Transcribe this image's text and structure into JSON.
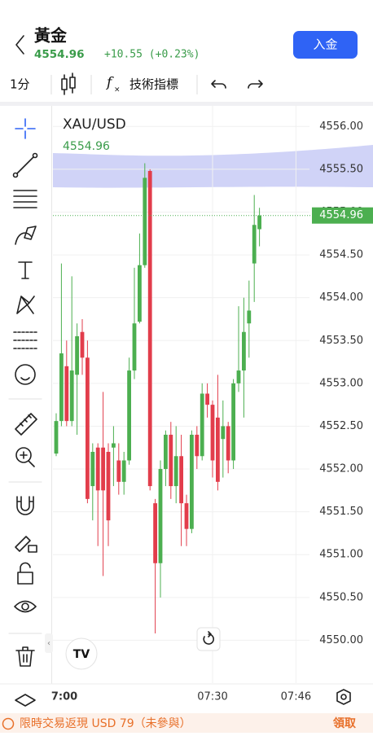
{
  "header": {
    "title": "黃金",
    "price": "4554.96",
    "change": "+10.55 (+0.23%)",
    "button": "入金"
  },
  "toolbar": {
    "interval": "1分",
    "indicators": "技術指標"
  },
  "banner": {
    "text": "限時交易返現 USD 79（未參與）",
    "action": "領取"
  },
  "chart_data": {
    "type": "candlestick",
    "title": "XAU/USD",
    "last_price": 4554.96,
    "up_color": "#4caf50",
    "down_color": "#e23d4b",
    "x": [
      "07:00",
      "07:01",
      "07:02",
      "07:03",
      "07:04",
      "07:05",
      "07:06",
      "07:07",
      "07:08",
      "07:09",
      "07:10",
      "07:11",
      "07:12",
      "07:13",
      "07:14",
      "07:15",
      "07:16",
      "07:17",
      "07:18",
      "07:19",
      "07:20",
      "07:21",
      "07:22",
      "07:23",
      "07:24",
      "07:25",
      "07:26",
      "07:27",
      "07:28",
      "07:29",
      "07:30",
      "07:31",
      "07:32",
      "07:33",
      "07:34",
      "07:35",
      "07:36",
      "07:37",
      "07:38",
      "07:39"
    ],
    "open": [
      4552.18,
      4552.56,
      4553.2,
      4552.56,
      4553.1,
      4553.6,
      4553.3,
      4551.8,
      4552.25,
      4552.25,
      4552.2,
      4552.25,
      4552.1,
      4551.85,
      4552.1,
      4553.15,
      4553.72,
      4554.38,
      4555.48,
      4551.6,
      4550.9,
      4552.0,
      4552.4,
      4551.8,
      4552.15,
      4551.6,
      4551.3,
      4552.4,
      4552.15,
      4552.88,
      4552.75,
      4552.6,
      4552.35,
      4552.5,
      4552.1,
      4553.0,
      4553.15,
      4553.7,
      4554.4,
      4554.8
    ],
    "high": [
      4552.65,
      4554.4,
      4553.5,
      4554.25,
      4553.7,
      4553.75,
      4553.5,
      4552.3,
      4552.3,
      4552.9,
      4552.3,
      4552.5,
      4552.3,
      4552.2,
      4553.3,
      4554.35,
      4554.75,
      4555.57,
      4555.5,
      4551.65,
      4552.1,
      4552.45,
      4552.55,
      4552.5,
      4552.4,
      4551.7,
      4552.45,
      4552.5,
      4553.0,
      4553.0,
      4552.8,
      4553.1,
      4552.8,
      4552.55,
      4553.05,
      4553.9,
      4554.0,
      4554.2,
      4555.2,
      4555.05
    ],
    "low": [
      4552.15,
      4552.5,
      4552.5,
      4552.5,
      4552.4,
      4553.1,
      4551.6,
      4551.4,
      4551.1,
      4550.75,
      4551.1,
      4551.8,
      4551.7,
      4551.7,
      4552.05,
      4553.05,
      4553.7,
      4554.35,
      4551.75,
      4550.08,
      4550.5,
      4551.8,
      4551.65,
      4551.6,
      4551.1,
      4551.1,
      4551.25,
      4552.0,
      4552.1,
      4552.6,
      4551.9,
      4551.75,
      4551.9,
      4551.95,
      4552.0,
      4552.9,
      4552.6,
      4553.3,
      4553.95,
      4554.6
    ],
    "close": [
      4552.56,
      4553.35,
      4552.56,
      4553.15,
      4553.55,
      4553.3,
      4551.65,
      4552.2,
      4551.75,
      4551.75,
      4551.4,
      4552.3,
      4551.85,
      4552.1,
      4553.15,
      4553.7,
      4554.38,
      4555.4,
      4551.8,
      4550.9,
      4552.0,
      4552.4,
      4551.8,
      4552.15,
      4551.6,
      4551.3,
      4552.4,
      4552.15,
      4552.88,
      4552.75,
      4552.1,
      4551.85,
      4552.5,
      4552.1,
      4553.0,
      4553.15,
      4553.6,
      4553.85,
      4554.85,
      4554.96
    ],
    "ylim": [
      4549.5,
      4556.25
    ],
    "yticks": [
      {
        "value": 4550,
        "label": "4550.00"
      },
      {
        "value": 4550.5,
        "label": "4550.50"
      },
      {
        "value": 4551,
        "label": "4551.00"
      },
      {
        "value": 4551.5,
        "label": "4551.50"
      },
      {
        "value": 4552,
        "label": "4552.00"
      },
      {
        "value": 4552.5,
        "label": "4552.50"
      },
      {
        "value": 4553,
        "label": "4553.00"
      },
      {
        "value": 4553.5,
        "label": "4553.50"
      },
      {
        "value": 4554,
        "label": "4554.00"
      },
      {
        "value": 4554.5,
        "label": "4554.50"
      },
      {
        "value": 4555,
        "label": "4555.00"
      },
      {
        "value": 4555.5,
        "label": "4555.50"
      },
      {
        "value": 4556,
        "label": "4556.00"
      }
    ],
    "xticks": [
      {
        "value": "07:00",
        "label": "7:00"
      },
      {
        "value": "07:30",
        "label": "07:30"
      },
      {
        "value": "07:46",
        "label": "07:46"
      }
    ],
    "grid": true
  }
}
